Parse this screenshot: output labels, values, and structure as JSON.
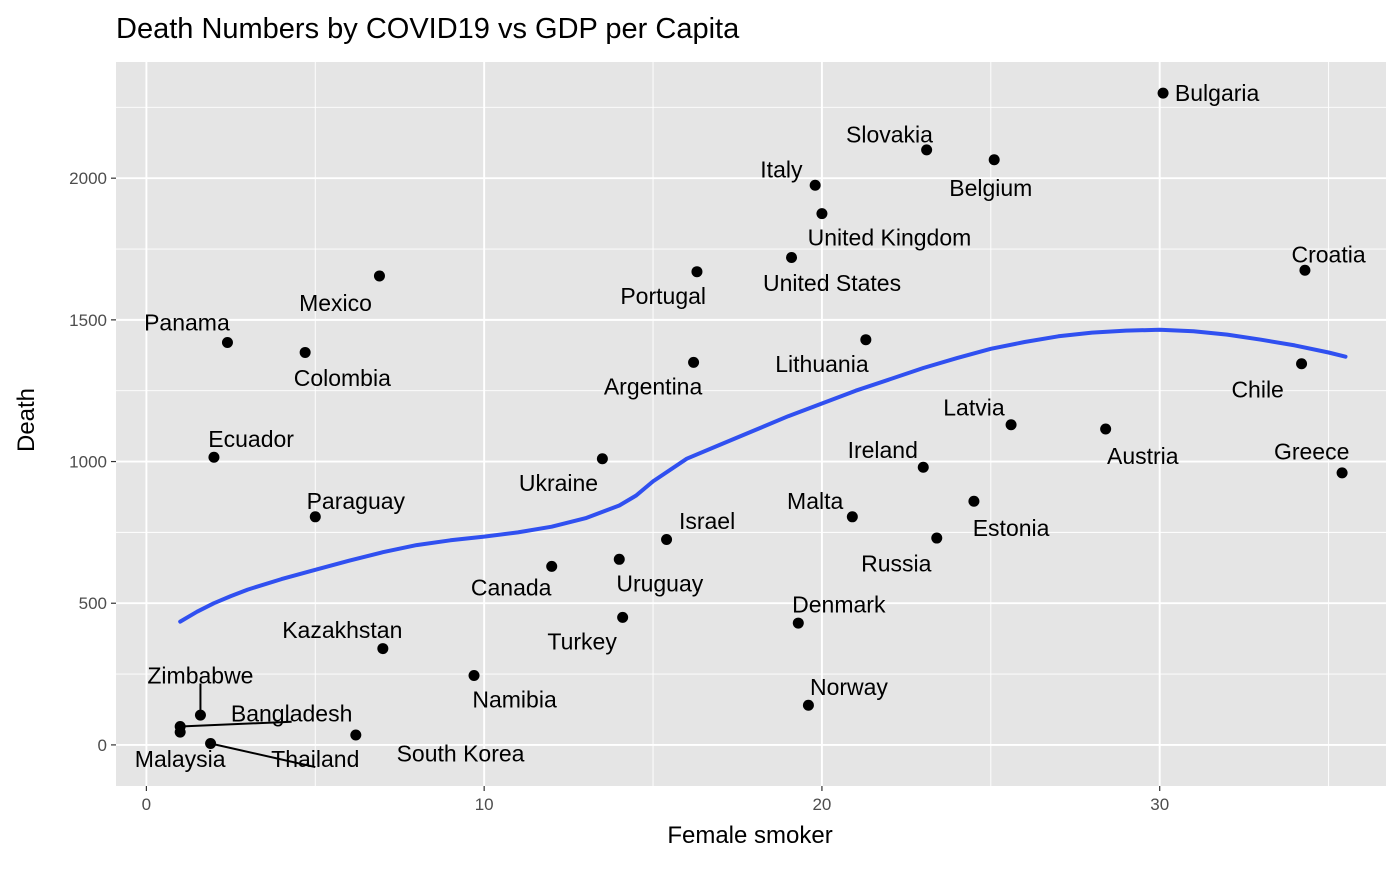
{
  "chart_data": {
    "type": "scatter",
    "title": "Death Numbers by COVID19 vs GDP per Capita",
    "xlabel": "Female smoker",
    "ylabel": "Death",
    "xlim": [
      -0.9,
      36.7
    ],
    "ylim": [
      -145,
      2410
    ],
    "x_ticks": [
      0,
      10,
      20,
      30
    ],
    "y_ticks": [
      0,
      500,
      1000,
      1500,
      2000
    ],
    "x_tick_labels": [
      "0",
      "10",
      "20",
      "30"
    ],
    "y_tick_labels": [
      "0",
      "500",
      "1000",
      "1500",
      "2000"
    ],
    "grid": true,
    "legend": "none",
    "colors": {
      "panel": "#e5e5e5",
      "grid": "#ffffff",
      "point": "#000000",
      "trend": "#3050f0"
    },
    "points": [
      {
        "label": "Bulgaria",
        "x": 30.1,
        "y": 2300,
        "lx": 31.7,
        "ly": 2300
      },
      {
        "label": "Slovakia",
        "x": 23.1,
        "y": 2100,
        "lx": 22.0,
        "ly": 2155
      },
      {
        "label": "Belgium",
        "x": 25.1,
        "y": 2065,
        "lx": 25.0,
        "ly": 1965
      },
      {
        "label": "Italy",
        "x": 19.8,
        "y": 1975,
        "lx": 18.8,
        "ly": 2030
      },
      {
        "label": "United Kingdom",
        "x": 20.0,
        "y": 1875,
        "lx": 22.0,
        "ly": 1790
      },
      {
        "label": "United States",
        "x": 19.1,
        "y": 1720,
        "lx": 20.3,
        "ly": 1630
      },
      {
        "label": "Croatia",
        "x": 34.3,
        "y": 1675,
        "lx": 35.0,
        "ly": 1730
      },
      {
        "label": "Mexico",
        "x": 6.9,
        "y": 1655,
        "lx": 5.6,
        "ly": 1560
      },
      {
        "label": "Portugal",
        "x": 16.3,
        "y": 1670,
        "lx": 15.3,
        "ly": 1585
      },
      {
        "label": "Panama",
        "x": 2.4,
        "y": 1420,
        "lx": 1.2,
        "ly": 1490
      },
      {
        "label": "Lithuania",
        "x": 21.3,
        "y": 1430,
        "lx": 20.0,
        "ly": 1345
      },
      {
        "label": "Colombia",
        "x": 4.7,
        "y": 1385,
        "lx": 5.8,
        "ly": 1295
      },
      {
        "label": "Argentina",
        "x": 16.2,
        "y": 1350,
        "lx": 15.0,
        "ly": 1265
      },
      {
        "label": "Chile",
        "x": 34.2,
        "y": 1345,
        "lx": 32.9,
        "ly": 1255
      },
      {
        "label": "Latvia",
        "x": 25.6,
        "y": 1130,
        "lx": 24.5,
        "ly": 1190
      },
      {
        "label": "Austria",
        "x": 28.4,
        "y": 1115,
        "lx": 29.5,
        "ly": 1020
      },
      {
        "label": "Ecuador",
        "x": 2.0,
        "y": 1015,
        "lx": 3.1,
        "ly": 1080
      },
      {
        "label": "Ireland",
        "x": 23.0,
        "y": 980,
        "lx": 21.8,
        "ly": 1040
      },
      {
        "label": "Greece",
        "x": 35.4,
        "y": 960,
        "lx": 34.5,
        "ly": 1035
      },
      {
        "label": "Ukraine",
        "x": 13.5,
        "y": 1010,
        "lx": 12.2,
        "ly": 925
      },
      {
        "label": "Paraguay",
        "x": 5.0,
        "y": 805,
        "lx": 6.2,
        "ly": 860
      },
      {
        "label": "Estonia",
        "x": 24.5,
        "y": 860,
        "lx": 25.6,
        "ly": 765
      },
      {
        "label": "Malta",
        "x": 20.9,
        "y": 805,
        "lx": 19.8,
        "ly": 860
      },
      {
        "label": "Israel",
        "x": 15.4,
        "y": 725,
        "lx": 16.6,
        "ly": 790
      },
      {
        "label": "Russia",
        "x": 23.4,
        "y": 730,
        "lx": 22.2,
        "ly": 640
      },
      {
        "label": "Uruguay",
        "x": 14.0,
        "y": 655,
        "lx": 15.2,
        "ly": 570
      },
      {
        "label": "Canada",
        "x": 12.0,
        "y": 630,
        "lx": 10.8,
        "ly": 555
      },
      {
        "label": "Denmark",
        "x": 19.3,
        "y": 430,
        "lx": 20.5,
        "ly": 495
      },
      {
        "label": "Turkey",
        "x": 14.1,
        "y": 450,
        "lx": 12.9,
        "ly": 365
      },
      {
        "label": "Kazakhstan",
        "x": 7.0,
        "y": 340,
        "lx": 5.8,
        "ly": 405
      },
      {
        "label": "Namibia",
        "x": 9.7,
        "y": 245,
        "lx": 10.9,
        "ly": 160
      },
      {
        "label": "Norway",
        "x": 19.6,
        "y": 140,
        "lx": 20.8,
        "ly": 205
      },
      {
        "label": "Zimbabwe",
        "x": 1.6,
        "y": 105,
        "lx": 1.6,
        "ly": 245,
        "connector": true
      },
      {
        "label": "Bangladesh",
        "x": 1.0,
        "y": 65,
        "lx": 4.3,
        "ly": 110,
        "connector": true
      },
      {
        "label": "Malaysia",
        "x": 1.0,
        "y": 45,
        "lx": 1.0,
        "ly": -50
      },
      {
        "label": "Thailand",
        "x": 1.9,
        "y": 5,
        "lx": 5.0,
        "ly": -50,
        "connector": true
      },
      {
        "label": "South Korea",
        "x": 6.2,
        "y": 35,
        "lx": 9.3,
        "ly": -30
      }
    ],
    "trend_line": {
      "type": "loess",
      "x": [
        1.0,
        1.5,
        2.0,
        2.5,
        3.0,
        4.0,
        5.0,
        6.0,
        7.0,
        8.0,
        9.0,
        10.0,
        11.0,
        12.0,
        13.0,
        14.0,
        14.5,
        15.0,
        16.0,
        17.0,
        18.0,
        19.0,
        20.0,
        21.0,
        22.0,
        23.0,
        24.0,
        25.0,
        26.0,
        27.0,
        28.0,
        29.0,
        30.0,
        31.0,
        32.0,
        33.0,
        34.0,
        35.0,
        35.5
      ],
      "y": [
        435,
        470,
        500,
        525,
        548,
        585,
        618,
        650,
        680,
        705,
        722,
        735,
        750,
        770,
        800,
        845,
        880,
        930,
        1010,
        1060,
        1110,
        1160,
        1205,
        1250,
        1290,
        1330,
        1365,
        1398,
        1422,
        1442,
        1455,
        1462,
        1465,
        1460,
        1448,
        1430,
        1410,
        1385,
        1370
      ]
    }
  }
}
